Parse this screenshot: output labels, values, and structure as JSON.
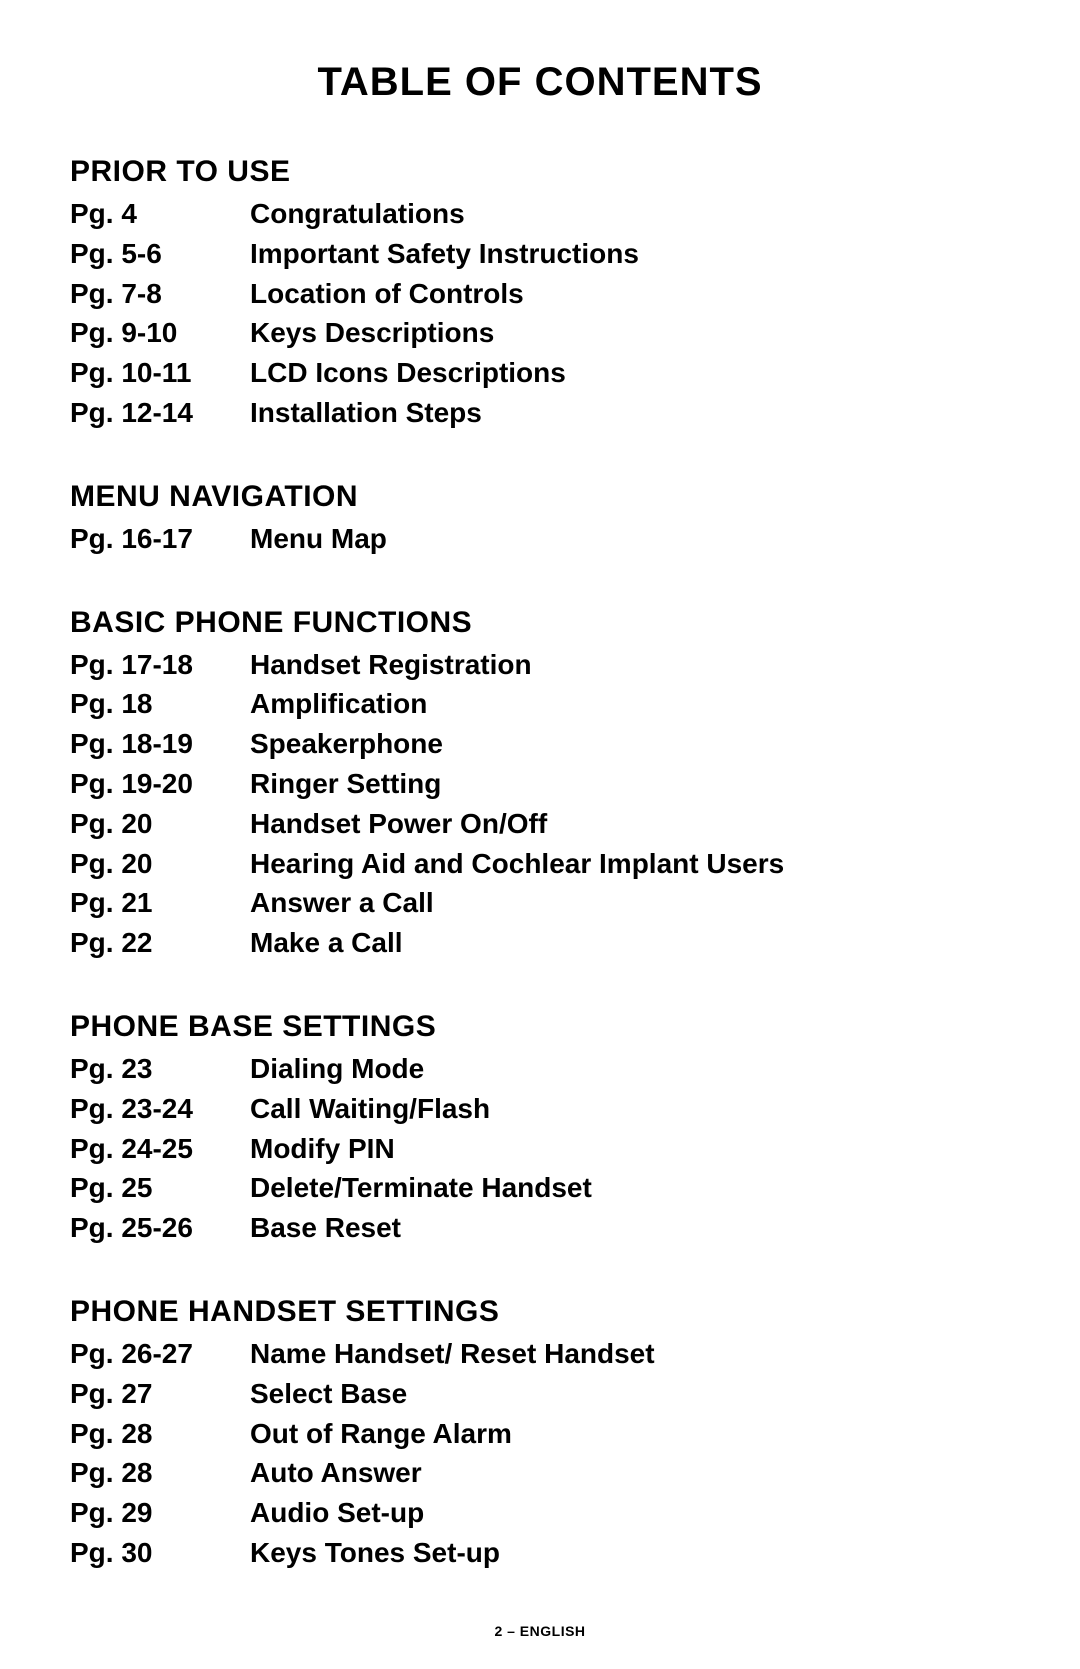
{
  "title": "TABLE OF CONTENTS",
  "footer": "2 – ENGLISH",
  "sections": [
    {
      "heading": "PRIOR TO USE",
      "entries": [
        {
          "page": "Pg. 4",
          "topic": "Congratulations"
        },
        {
          "page": "Pg. 5-6",
          "topic": "Important Safety Instructions"
        },
        {
          "page": "Pg. 7-8",
          "topic": "Location of Controls"
        },
        {
          "page": "Pg. 9-10",
          "topic": "Keys Descriptions"
        },
        {
          "page": "Pg. 10-11",
          "topic": "LCD Icons Descriptions"
        },
        {
          "page": "Pg. 12-14",
          "topic": "Installation Steps"
        }
      ]
    },
    {
      "heading": "MENU NAVIGATION",
      "entries": [
        {
          "page": "Pg. 16-17",
          "topic": "Menu Map"
        }
      ]
    },
    {
      "heading": "BASIC PHONE FUNCTIONS",
      "entries": [
        {
          "page": "Pg. 17-18",
          "topic": "Handset Registration"
        },
        {
          "page": "Pg. 18",
          "topic": "Amplification"
        },
        {
          "page": "Pg. 18-19",
          "topic": "Speakerphone"
        },
        {
          "page": "Pg. 19-20",
          "topic": "Ringer Setting"
        },
        {
          "page": "Pg. 20",
          "topic": "Handset Power On/Off"
        },
        {
          "page": "Pg. 20",
          "topic": "Hearing Aid and Cochlear Implant Users"
        },
        {
          "page": "Pg. 21",
          "topic": "Answer a Call"
        },
        {
          "page": "Pg. 22",
          "topic": "Make a Call"
        }
      ]
    },
    {
      "heading": "PHONE BASE SETTINGS",
      "entries": [
        {
          "page": "Pg. 23",
          "topic": "Dialing Mode"
        },
        {
          "page": "Pg. 23-24",
          "topic": "Call Waiting/Flash"
        },
        {
          "page": "Pg. 24-25",
          "topic": "Modify PIN"
        },
        {
          "page": "Pg. 25",
          "topic": "Delete/Terminate Handset"
        },
        {
          "page": "Pg. 25-26",
          "topic": "Base Reset"
        }
      ]
    },
    {
      "heading": "PHONE HANDSET SETTINGS",
      "entries": [
        {
          "page": "Pg. 26-27",
          "topic": "Name Handset/ Reset Handset"
        },
        {
          "page": "Pg. 27",
          "topic": "Select Base"
        },
        {
          "page": "Pg. 28",
          "topic": "Out of Range Alarm"
        },
        {
          "page": "Pg. 28",
          "topic": "Auto Answer"
        },
        {
          "page": "Pg. 29",
          "topic": "Audio Set-up"
        },
        {
          "page": "Pg. 30",
          "topic": "Keys Tones Set-up"
        }
      ]
    }
  ]
}
